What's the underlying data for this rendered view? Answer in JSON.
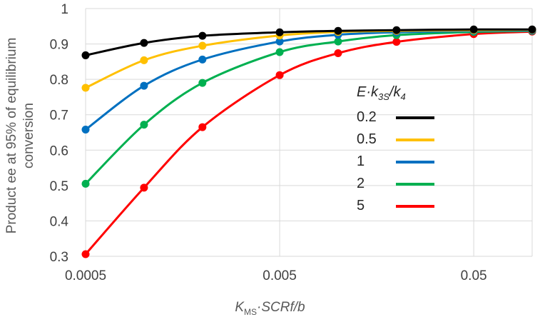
{
  "chart_data": {
    "type": "line",
    "x": [
      0.0005,
      0.001,
      0.002,
      0.005,
      0.01,
      0.02,
      0.05,
      0.1
    ],
    "xscale": "log",
    "xlim": [
      0.0005,
      0.1
    ],
    "ylim": [
      0.3,
      1
    ],
    "xticks": [
      "0.0005",
      "0.005",
      "0.05"
    ],
    "xtick_values": [
      0.0005,
      0.005,
      0.05
    ],
    "yticks": [
      "0.3",
      "0.4",
      "0.5",
      "0.6",
      "0.7",
      "0.8",
      "0.9",
      "1"
    ],
    "ytick_values": [
      0.3,
      0.4,
      0.5,
      0.6,
      0.7,
      0.8,
      0.9,
      1.0
    ],
    "ylabel_lines": [
      "Product ee at 95% of equilibrium",
      "conversion"
    ],
    "xlabel_parts": {
      "k": "K",
      "sub": "MS",
      "rest": "·SCRf/b"
    },
    "grid": true,
    "legend": {
      "placement": "center-right",
      "title_parts": {
        "a": "E·k",
        "sub1": "3S",
        "b": "/k",
        "sub2": "4"
      }
    },
    "series": [
      {
        "name": "0.2",
        "color": "#000000",
        "values": [
          0.868,
          0.903,
          0.923,
          0.933,
          0.937,
          0.939,
          0.941,
          0.941
        ]
      },
      {
        "name": "0.5",
        "color": "#FFC000",
        "values": [
          0.776,
          0.854,
          0.895,
          0.924,
          0.934,
          0.937,
          0.939,
          0.94
        ]
      },
      {
        "name": "1",
        "color": "#0070C0",
        "values": [
          0.658,
          0.782,
          0.856,
          0.907,
          0.926,
          0.933,
          0.937,
          0.938
        ]
      },
      {
        "name": "2",
        "color": "#00B050",
        "values": [
          0.505,
          0.672,
          0.79,
          0.877,
          0.907,
          0.925,
          0.934,
          0.937
        ]
      },
      {
        "name": "5",
        "color": "#FF0000",
        "values": [
          0.306,
          0.494,
          0.665,
          0.812,
          0.874,
          0.906,
          0.928,
          0.935
        ]
      }
    ]
  }
}
